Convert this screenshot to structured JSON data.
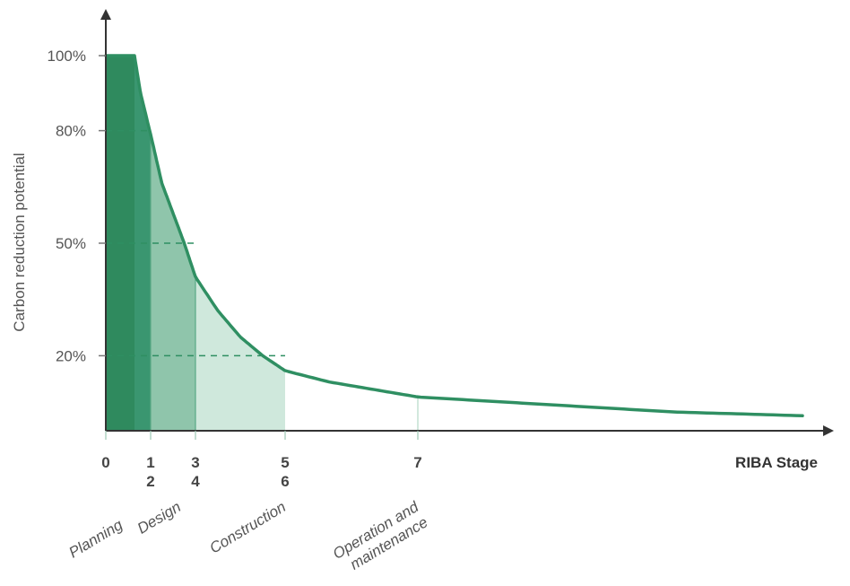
{
  "chart_data": {
    "type": "area",
    "ylabel": "Carbon reduction potential",
    "xlabel": "RIBA Stage",
    "y_ticks": [
      "100%",
      "80%",
      "50%",
      "20%"
    ],
    "y_tick_values": [
      100,
      80,
      50,
      20
    ],
    "x_ticks": [
      {
        "stage": 0,
        "lines": [
          "0"
        ]
      },
      {
        "stage": 1.5,
        "lines": [
          "1",
          "2"
        ]
      },
      {
        "stage": 3.5,
        "lines": [
          "3",
          "4"
        ]
      },
      {
        "stage": 5.5,
        "lines": [
          "5",
          "6"
        ]
      },
      {
        "stage": 7,
        "lines": [
          "7"
        ]
      }
    ],
    "phases": [
      {
        "lines": [
          "Planning"
        ],
        "stage": 0
      },
      {
        "lines": [
          "Design"
        ],
        "stage": 2.5
      },
      {
        "lines": [
          "Construction"
        ],
        "stage": 5
      },
      {
        "lines": [
          "Operation and",
          "maintenance"
        ],
        "stage": 7
      }
    ],
    "curve": {
      "x": [
        0.7,
        1.0,
        1.5,
        2.0,
        2.5,
        3.0,
        3.5,
        4.0,
        4.5,
        5.0,
        5.5,
        6.0,
        6.5,
        7.0,
        7.5,
        8.0,
        8.5,
        9.0,
        10.0
      ],
      "y": [
        100,
        90,
        79,
        66,
        58,
        50,
        41,
        32,
        25,
        20,
        16,
        13,
        11,
        9,
        8,
        7,
        6,
        5,
        4
      ]
    },
    "shaded_bands": [
      {
        "from": 0,
        "to": 1.5,
        "shade": "#3a9670"
      },
      {
        "from": 1.5,
        "to": 3.5,
        "shade": "#8fc5ab"
      },
      {
        "from": 3.5,
        "to": 5.5,
        "shade": "#cfe8dc"
      }
    ],
    "band_tops": [
      {
        "from": 0,
        "to": 0.7,
        "y": 100
      }
    ],
    "guides": [
      {
        "y": 80,
        "to_stage": 1.5
      },
      {
        "y": 50,
        "to_stage": 3.5
      },
      {
        "y": 20,
        "to_stage": 5.5
      }
    ],
    "colors": {
      "curve": "#2f8f62",
      "first_band": "#2f8a5e",
      "axis": "#333333"
    },
    "xlim": [
      0,
      10
    ],
    "ylim": [
      0,
      100
    ]
  }
}
